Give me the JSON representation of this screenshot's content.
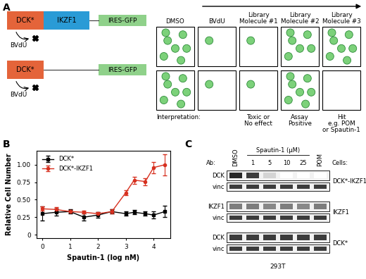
{
  "panel_labels": [
    "A",
    "B",
    "C"
  ],
  "panel_a": {
    "constructs": [
      {
        "parts": [
          "DCK*",
          "IKZF1"
        ],
        "reporter": "IRES-GFP",
        "drug": "BVdU"
      },
      {
        "parts": [
          "DCK*"
        ],
        "reporter": "IRES-GFP",
        "drug": "BVdU"
      }
    ],
    "columns": [
      "DMSO",
      "BVdU",
      "Library\nMolecule #1",
      "Library\nMolecule #2",
      "Library\nMolecule #3"
    ],
    "cell_counts": [
      [
        7,
        1,
        1,
        6,
        7
      ],
      [
        7,
        1,
        1,
        7,
        0
      ]
    ],
    "interpretation_label": "Interpretation:",
    "interpretations": [
      null,
      null,
      "Toxic or\nNo effect",
      "Assay\nPositive",
      "Hit\ne.g. POM\nor Spautin-1"
    ]
  },
  "chart_data": {
    "type": "line",
    "xlabel": "Spautin-1 (log nM)",
    "ylabel": "Relative Cell Number",
    "x": [
      0,
      0.5,
      1,
      1.5,
      2,
      2.5,
      3,
      3.3,
      3.7,
      4,
      4.4
    ],
    "series": [
      {
        "name": "DCK*",
        "color": "#000000",
        "marker": "square",
        "line_style": "solid",
        "values": [
          0.3,
          0.32,
          0.33,
          0.25,
          0.28,
          0.33,
          0.3,
          0.32,
          0.3,
          0.28,
          0.33
        ],
        "errors": [
          0.1,
          0.05,
          0.03,
          0.05,
          0.04,
          0.03,
          0.03,
          0.03,
          0.03,
          0.05,
          0.08
        ]
      },
      {
        "name": "DCK*-IKZF1",
        "color": "#d7301f",
        "marker": "circle",
        "line_style": "solid",
        "values": [
          0.37,
          0.36,
          0.33,
          0.32,
          0.3,
          0.33,
          0.6,
          0.78,
          0.76,
          0.96,
          1.0
        ],
        "errors": [
          0.03,
          0.03,
          0.02,
          0.02,
          0.02,
          0.03,
          0.04,
          0.05,
          0.05,
          0.08,
          0.15
        ]
      }
    ],
    "xlim": [
      -0.2,
      4.6
    ],
    "xticks": [
      0,
      1,
      2,
      3,
      4
    ],
    "ylim": [
      -0.05,
      1.2
    ],
    "yticks": [
      0,
      0.25,
      {
        "value": 0.5,
        "label": "0.50"
      },
      0.75,
      {
        "value": 1,
        "label": "1.00"
      }
    ],
    "legend": "upper left"
  },
  "panel_c": {
    "ab_header": "Ab:",
    "cells_header": "Cells:",
    "lanes": {
      "before": [
        "DMSO"
      ],
      "group": {
        "label": "Spautin-1 (µM)",
        "lanes": [
          1,
          5,
          10,
          25
        ]
      },
      "after": [
        "POM"
      ]
    },
    "blots": [
      {
        "cells": "DCK*-IKZF1",
        "rows": [
          {
            "ab": "DCK",
            "bands": [
              1.0,
              0.9,
              0.2,
              0,
              0,
              0
            ]
          },
          {
            "ab": "vinc",
            "bands": [
              0.9,
              0.9,
              0.9,
              0.9,
              0.9,
              0.9
            ]
          }
        ]
      },
      {
        "cells": "IKZF1",
        "rows": [
          {
            "ab": "IKZF1",
            "bands": [
              0.6,
              0.6,
              0.55,
              0.6,
              0.55,
              0.6
            ]
          },
          {
            "ab": "vinc",
            "bands": [
              0.9,
              0.9,
              0.9,
              0.9,
              0.9,
              0.9
            ]
          }
        ]
      },
      {
        "cells": "DCK*",
        "rows": [
          {
            "ab": "DCK",
            "bands": [
              0.9,
              0.9,
              0.9,
              0.9,
              0.9,
              0.9
            ]
          },
          {
            "ab": "vinc",
            "bands": [
              0.9,
              0.9,
              0.9,
              0.9,
              0.9,
              0.9
            ]
          }
        ]
      }
    ],
    "cell_line": "293T"
  }
}
